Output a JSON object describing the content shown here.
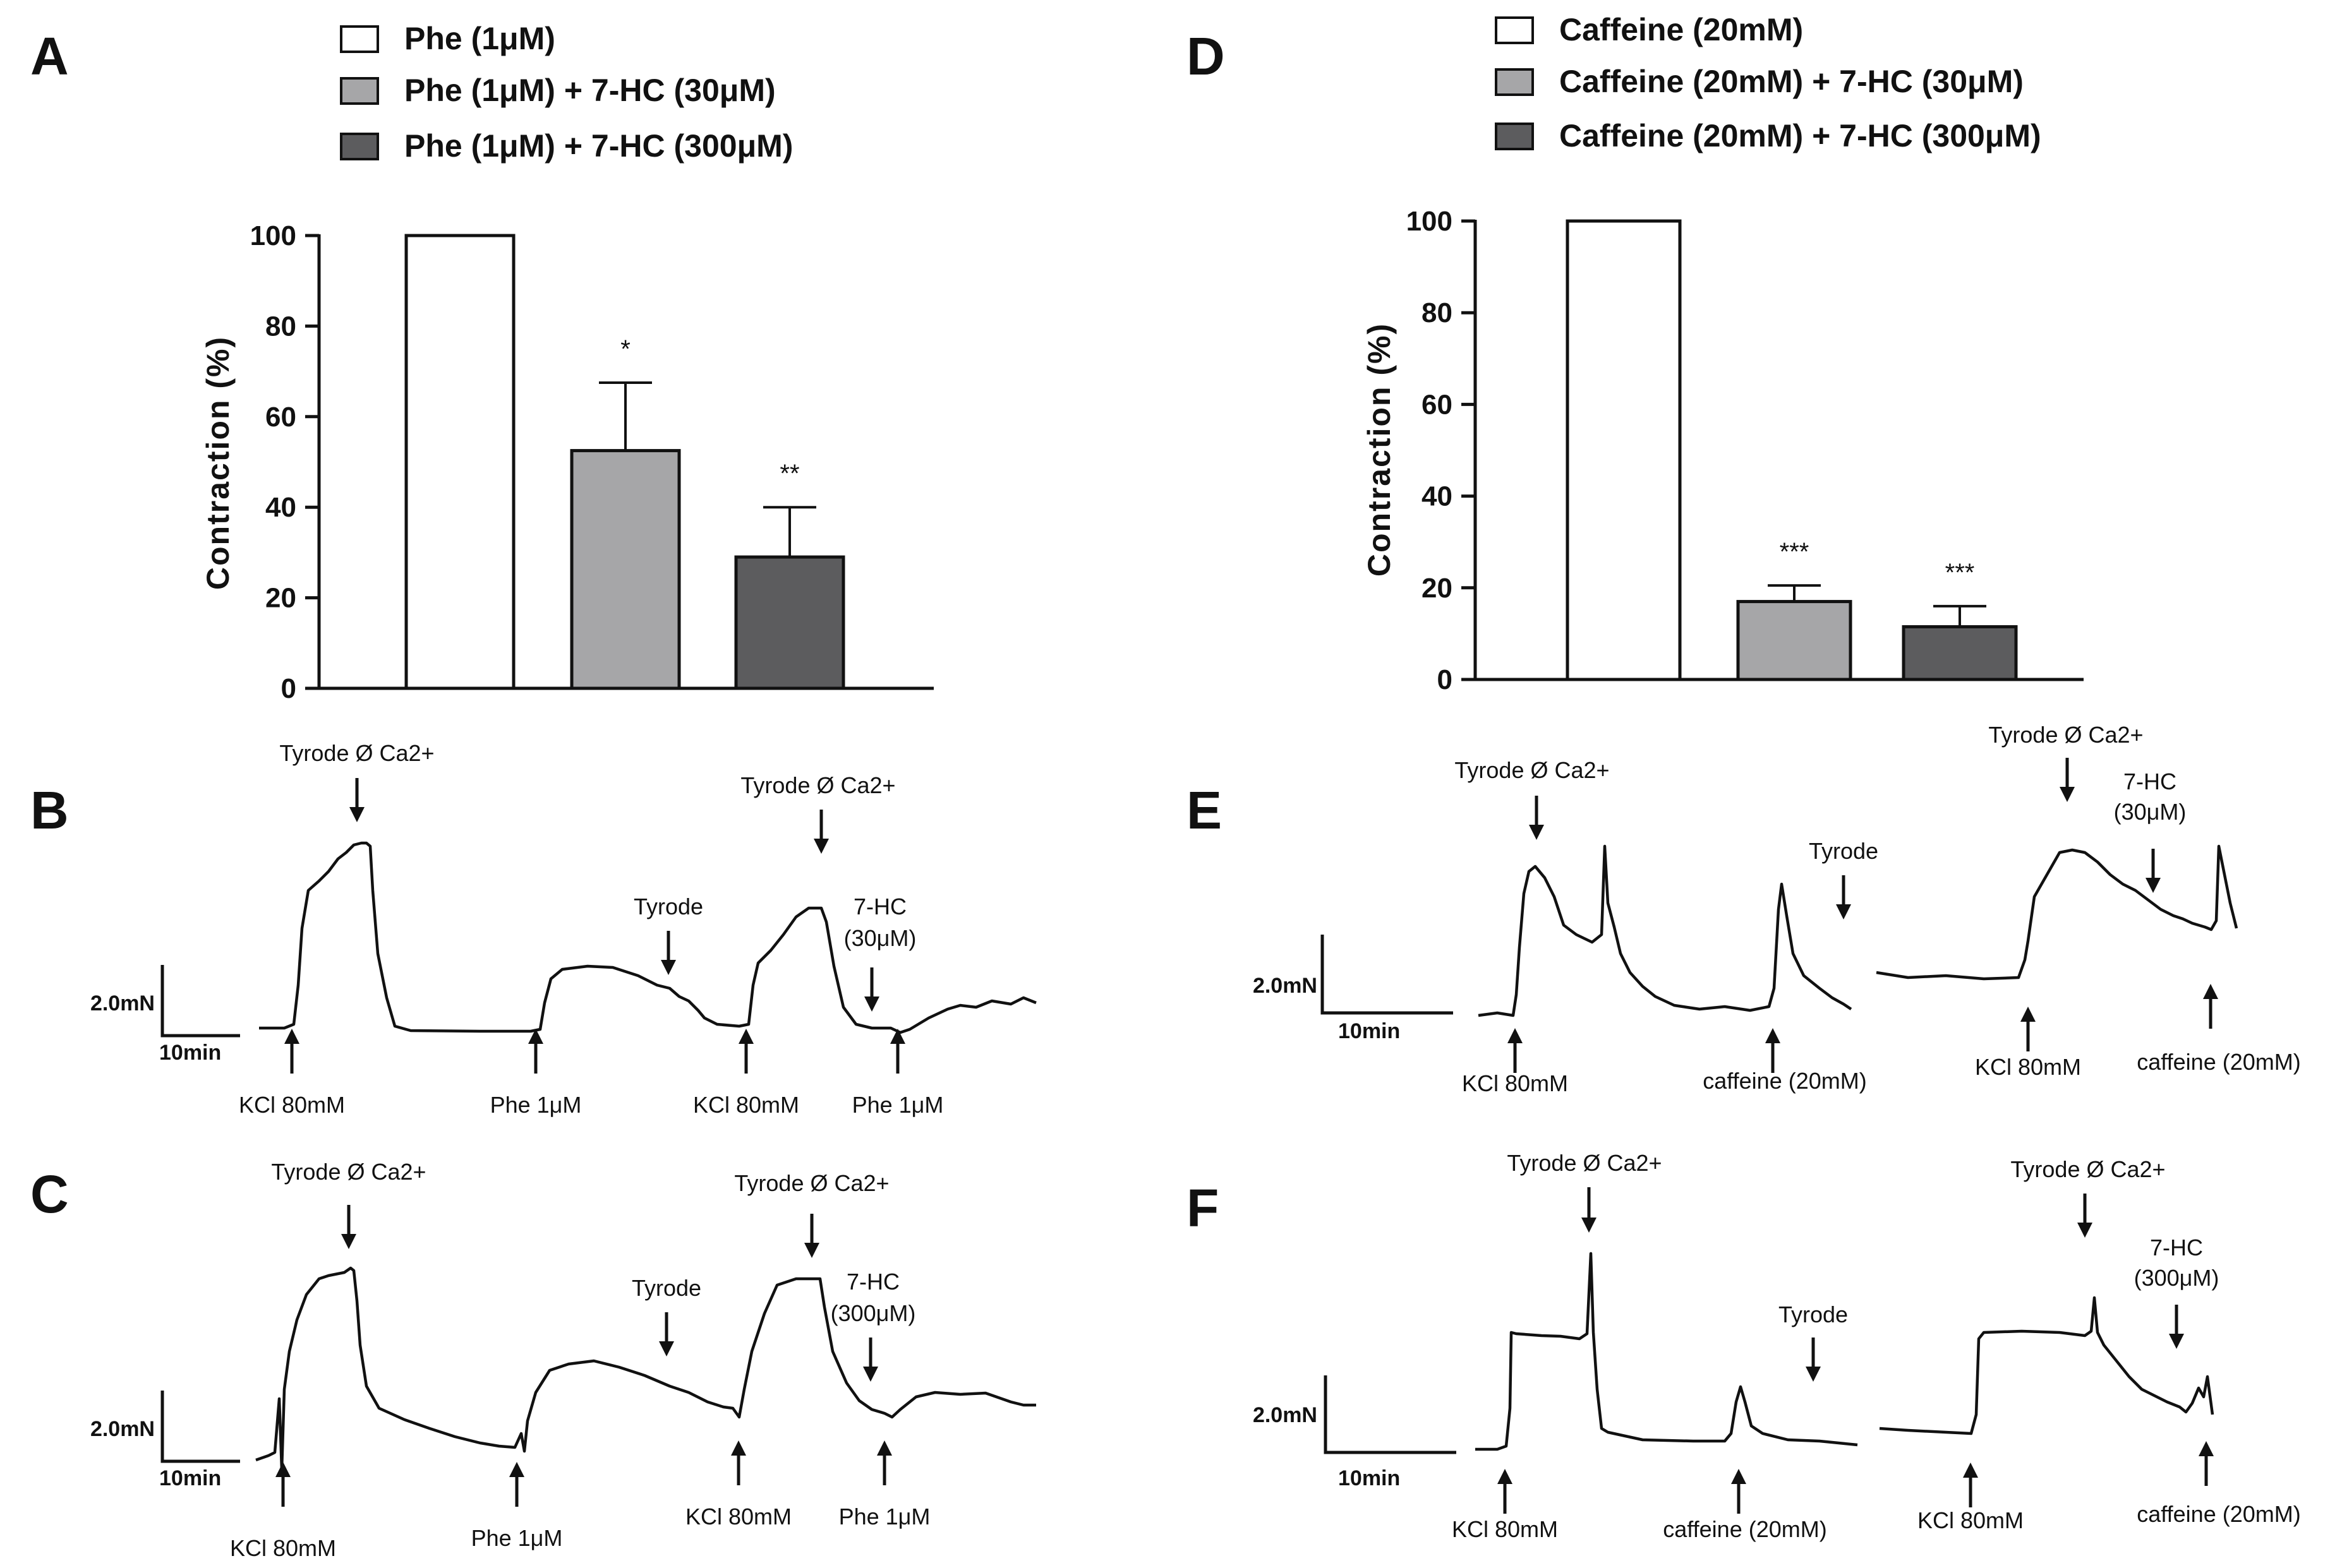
{
  "colors": {
    "white_bar": "#ffffff",
    "light_gray_bar": "#a6a6a8",
    "dark_gray_bar": "#5c5c5e",
    "ink": "#111111"
  },
  "panels": {
    "A": "A",
    "B": "B",
    "C": "C",
    "D": "D",
    "E": "E",
    "F": "F"
  },
  "chart_data": [
    {
      "panel": "A",
      "type": "bar",
      "legend": [
        "Phe (1μM)",
        "Phe (1μM) + 7-HC (30μM)",
        "Phe (1μM) + 7-HC (300μM)"
      ],
      "categories": [
        "Phe (1μM)",
        "Phe (1μM) + 7-HC (30μM)",
        "Phe (1μM) + 7-HC (300μM)"
      ],
      "values": [
        100,
        52.5,
        29
      ],
      "errors": [
        0,
        15,
        11
      ],
      "significance": [
        "",
        "*",
        "**"
      ],
      "ylabel": "Contraction (%)",
      "yticks": [
        "0",
        "20",
        "40",
        "60",
        "80",
        "100"
      ],
      "ylim": [
        0,
        100
      ],
      "xlabel": ""
    },
    {
      "panel": "D",
      "type": "bar",
      "legend": [
        "Caffeine (20mM)",
        "Caffeine (20mM) + 7-HC (30μM)",
        "Caffeine (20mM) + 7-HC (300μM)"
      ],
      "categories": [
        "Caffeine (20mM)",
        "Caffeine (20mM) + 7-HC (30μM)",
        "Caffeine (20mM) + 7-HC (300μM)"
      ],
      "values": [
        100,
        17,
        11.5
      ],
      "errors": [
        0,
        3.5,
        4.5
      ],
      "significance": [
        "",
        "***",
        "***"
      ],
      "ylabel": "Contraction (%)",
      "yticks": [
        "0",
        "20",
        "40",
        "60",
        "80",
        "100"
      ],
      "ylim": [
        0,
        100
      ],
      "xlabel": ""
    }
  ],
  "traces": {
    "B": {
      "scale": {
        "force": "2.0mN",
        "time": "10min"
      },
      "annotations": {
        "tyrode_ca_1": "Tyrode Ø Ca2+",
        "tyrode_ca_2": "Tyrode Ø Ca2+",
        "tyrode": "Tyrode",
        "seven_hc_name": "7-HC",
        "seven_hc_conc": "(30μM)",
        "kcl_1": "KCl 80mM",
        "phe_1": "Phe 1μM",
        "kcl_2": "KCl 80mM",
        "phe_2": "Phe 1μM"
      }
    },
    "C": {
      "scale": {
        "force": "2.0mN",
        "time": "10min"
      },
      "annotations": {
        "tyrode_ca_1": "Tyrode Ø Ca2+",
        "tyrode_ca_2": "Tyrode Ø Ca2+",
        "tyrode": "Tyrode",
        "seven_hc_name": "7-HC",
        "seven_hc_conc": "(300μM)",
        "kcl_1": "KCl 80mM",
        "phe_1": "Phe 1μM",
        "kcl_2": "KCl 80mM",
        "phe_2": "Phe 1μM"
      }
    },
    "E": {
      "scale": {
        "force": "2.0mN",
        "time": "10min"
      },
      "annotations": {
        "tyrode_ca_1": "Tyrode Ø Ca2+",
        "tyrode_ca_2": "Tyrode Ø Ca2+",
        "tyrode": "Tyrode",
        "seven_hc_name": "7-HC",
        "seven_hc_conc": "(30μM)",
        "kcl_1": "KCl 80mM",
        "caffeine_1": "caffeine (20mM)",
        "kcl_2": "KCl 80mM",
        "caffeine_2": "caffeine (20mM)"
      }
    },
    "F": {
      "scale": {
        "force": "2.0mN",
        "time": "10min"
      },
      "annotations": {
        "tyrode_ca_1": "Tyrode Ø Ca2+",
        "tyrode_ca_2": "Tyrode Ø Ca2+",
        "tyrode": "Tyrode",
        "seven_hc_name": "7-HC",
        "seven_hc_conc": "(300μM)",
        "kcl_1": "KCl 80mM",
        "caffeine_1": "caffeine (20mM)",
        "kcl_2": "KCl 80mM",
        "caffeine_2": "caffeine (20mM)"
      }
    }
  }
}
